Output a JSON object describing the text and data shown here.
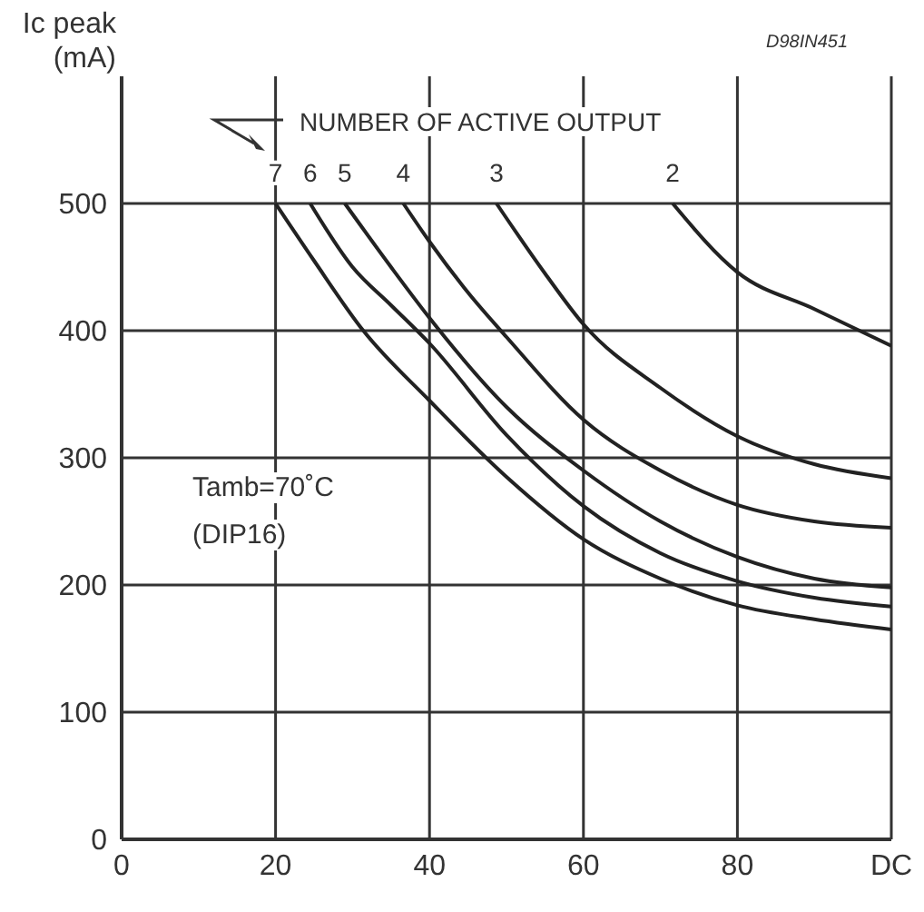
{
  "chart_data": {
    "type": "line",
    "ylabel": "Ic peak (mA)",
    "annotations": [
      "D98IN451",
      "NUMBER OF ACTIVE OUTPUT",
      "Tamb=70˚C",
      "(DIP16)"
    ],
    "xlim": [
      0,
      100
    ],
    "xticks": [
      0,
      20,
      40,
      60,
      80,
      {
        "value": 100,
        "label": "DC"
      }
    ],
    "ylim": [
      0,
      600
    ],
    "yticks": [
      0,
      100,
      200,
      300,
      400,
      500
    ],
    "grid": true,
    "legend": false,
    "marker": "none",
    "line_style": "solid",
    "series": [
      {
        "name": "7",
        "color": "#222222",
        "x": [
          20,
          25,
          31.4,
          40,
          50,
          60,
          70,
          80,
          90,
          100
        ],
        "values": [
          500,
          455,
          400,
          345,
          285,
          236,
          205,
          184,
          173,
          165
        ]
      },
      {
        "name": "6",
        "color": "#222222",
        "x": [
          24.5,
          30,
          35,
          40,
          50,
          60,
          70,
          80,
          90,
          100
        ],
        "values": [
          500,
          450,
          420,
          390,
          318,
          262,
          225,
          203,
          190,
          183
        ]
      },
      {
        "name": "5",
        "color": "#222222",
        "x": [
          29,
          35,
          40,
          50,
          60,
          70,
          80,
          90,
          100
        ],
        "values": [
          500,
          450,
          410,
          340,
          290,
          250,
          222,
          205,
          198
        ]
      },
      {
        "name": "4",
        "color": "#222222",
        "x": [
          36.6,
          40,
          45,
          50,
          60,
          70,
          80,
          90,
          100
        ],
        "values": [
          500,
          470,
          430,
          395,
          330,
          290,
          263,
          250,
          245
        ]
      },
      {
        "name": "3",
        "color": "#222222",
        "x": [
          48.7,
          55,
          60,
          70,
          80,
          90,
          100
        ],
        "values": [
          500,
          445,
          405,
          355,
          317,
          295,
          284
        ]
      },
      {
        "name": "2",
        "color": "#222222",
        "x": [
          71.6,
          80,
          90,
          100
        ],
        "values": [
          500,
          446,
          417,
          388
        ]
      }
    ]
  }
}
